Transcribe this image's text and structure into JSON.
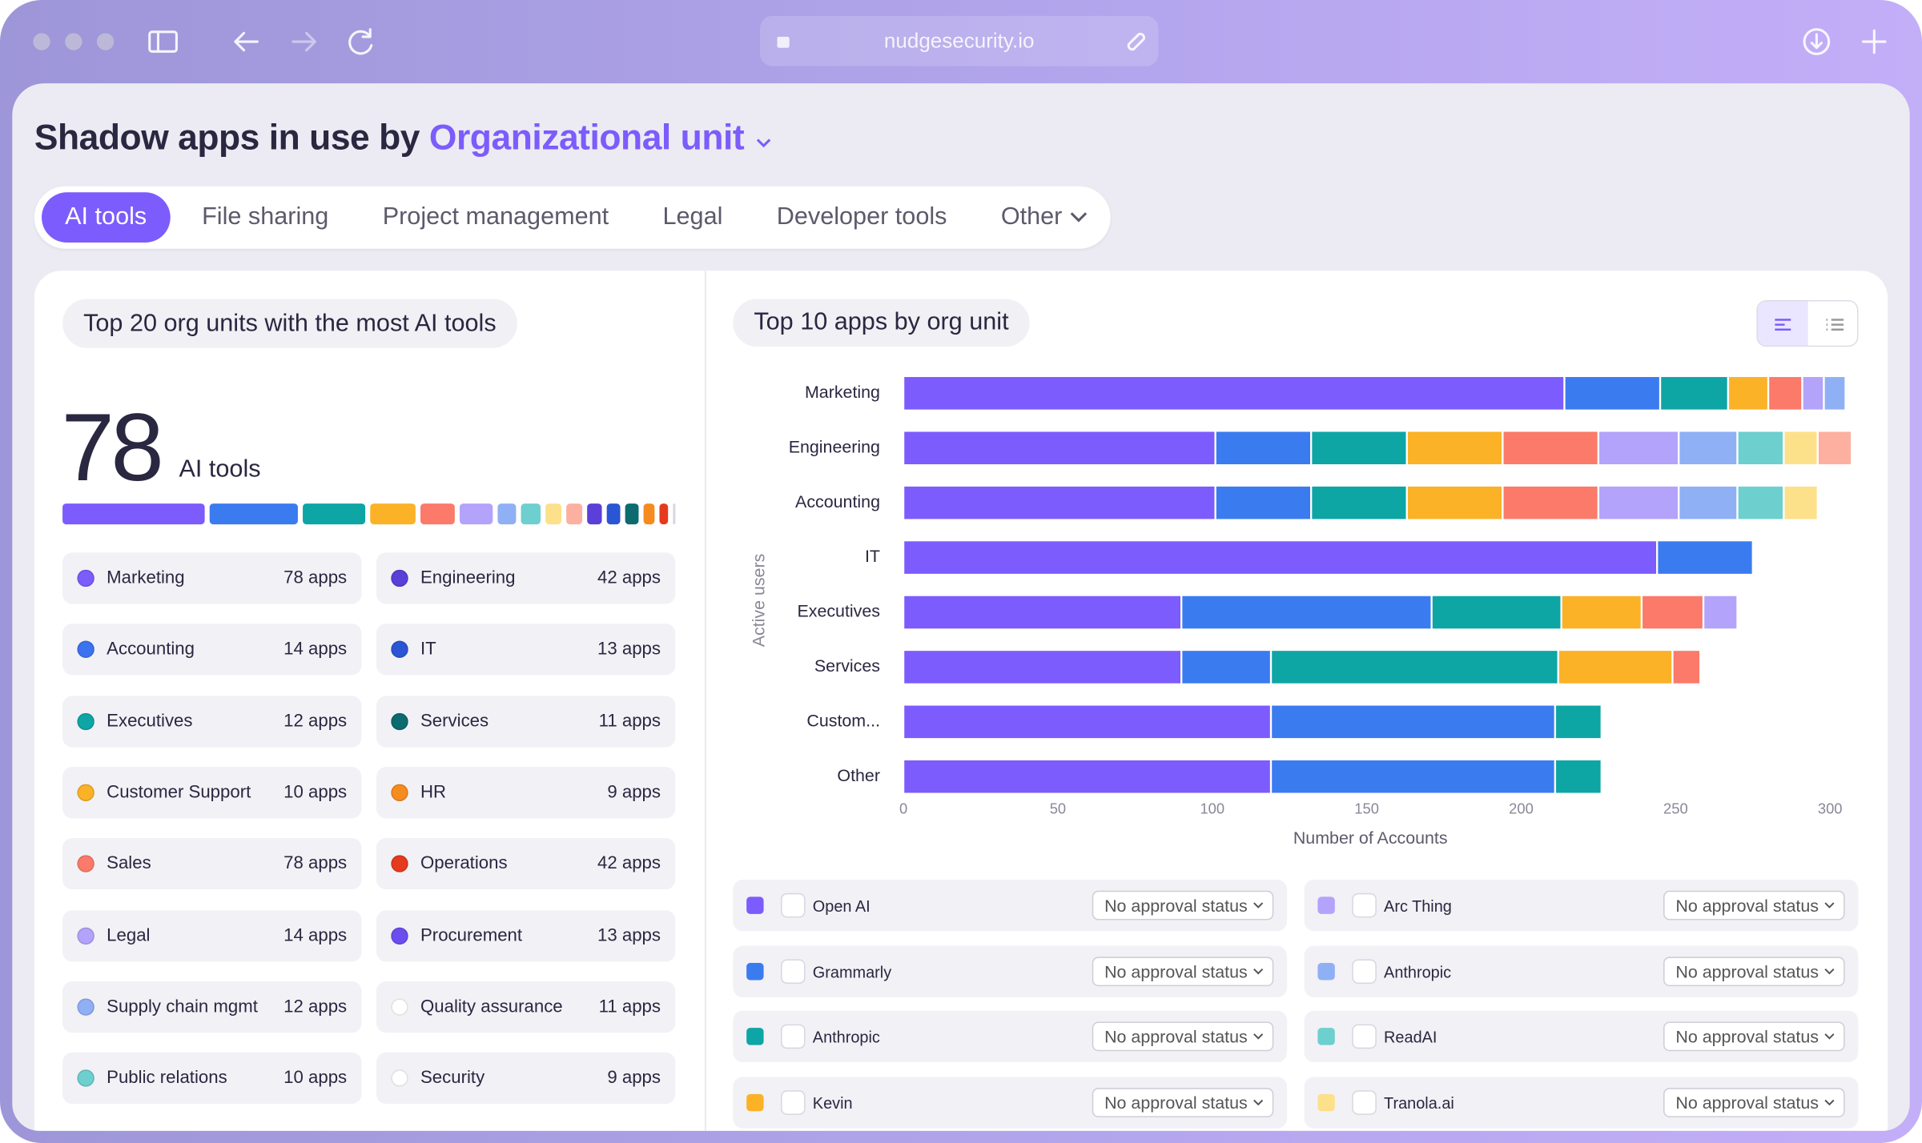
{
  "browser": {
    "url": "nudgesecurity.io"
  },
  "header": {
    "title": "Shadow apps in use by",
    "group_by": "Organizational unit"
  },
  "tabs": [
    "AI tools",
    "File sharing",
    "Project management",
    "Legal",
    "Developer tools",
    "Other"
  ],
  "left_panel": {
    "title": "Top 20 org units with the most AI tools",
    "count": 78,
    "unit": "AI tools",
    "org_units": [
      {
        "name": "Marketing",
        "apps": "78 apps",
        "color": "#7c5cfc"
      },
      {
        "name": "Engineering",
        "apps": "42 apps",
        "color": "#5a3fd8"
      },
      {
        "name": "Accounting",
        "apps": "14 apps",
        "color": "#3b72f0"
      },
      {
        "name": "IT",
        "apps": "13 apps",
        "color": "#2a55d4"
      },
      {
        "name": "Executives",
        "apps": "12 apps",
        "color": "#0ea5a5"
      },
      {
        "name": "Services",
        "apps": "11 apps",
        "color": "#0b6b6e"
      },
      {
        "name": "Customer Support",
        "apps": "10 apps",
        "color": "#fbb227"
      },
      {
        "name": "HR",
        "apps": "9 apps",
        "color": "#f68b1f"
      },
      {
        "name": "Sales",
        "apps": "78 apps",
        "color": "#fb7a6a"
      },
      {
        "name": "Operations",
        "apps": "42 apps",
        "color": "#e63a1e"
      },
      {
        "name": "Legal",
        "apps": "14 apps",
        "color": "#b3a3fb"
      },
      {
        "name": "Procurement",
        "apps": "13 apps",
        "color": "#6b4ef0"
      },
      {
        "name": "Supply chain mgmt",
        "apps": "12 apps",
        "color": "#8fb0f5"
      },
      {
        "name": "Quality assurance",
        "apps": "11 apps",
        "color": "#ffffff"
      },
      {
        "name": "Public relations",
        "apps": "10 apps",
        "color": "#6ecfcf"
      },
      {
        "name": "Security",
        "apps": "9 apps",
        "color": "#ffffff"
      }
    ]
  },
  "right_panel": {
    "title": "Top 10 apps by org unit",
    "apps": [
      {
        "name": "Open AI",
        "status": "No approval status",
        "color": "#7c5cfc"
      },
      {
        "name": "Arc Thing",
        "status": "No approval status",
        "color": "#b3a3fb"
      },
      {
        "name": "Grammarly",
        "status": "No approval status",
        "color": "#3b7bf0"
      },
      {
        "name": "Anthropic",
        "status": "No approval status",
        "color": "#8fb0f5"
      },
      {
        "name": "Anthropic",
        "status": "No approval status",
        "color": "#0ea5a5"
      },
      {
        "name": "ReadAI",
        "status": "No approval status",
        "color": "#6ecfcf"
      },
      {
        "name": "Kevin",
        "status": "No approval status",
        "color": "#fbb227"
      },
      {
        "name": "Tranola.ai",
        "status": "No approval status",
        "color": "#fde08a"
      }
    ]
  },
  "chart_data": {
    "type": "stacked-barh",
    "xlabel": "Number of Accounts",
    "ylabel": "Active users",
    "categories": [
      "Marketing",
      "Engineering",
      "Accounting",
      "IT",
      "Executives",
      "Services",
      "Custom...",
      "Other"
    ],
    "xlim": [
      0,
      300
    ],
    "xticks": [
      0,
      50,
      100,
      150,
      200,
      250,
      300
    ],
    "series": [
      {
        "color": "#7c5cfc",
        "values": [
          214,
          101,
          101,
          244,
          90,
          90,
          119,
          119
        ]
      },
      {
        "color": "#3b7bf0",
        "values": [
          31,
          31,
          31,
          31,
          81,
          29,
          92,
          92
        ]
      },
      {
        "color": "#0ea5a5",
        "values": [
          22,
          31,
          31,
          null,
          42,
          93,
          15,
          15
        ]
      },
      {
        "color": "#fbb227",
        "values": [
          13,
          31,
          31,
          null,
          26,
          37,
          null,
          null
        ]
      },
      {
        "color": "#fb7a6a",
        "values": [
          11,
          31,
          31,
          null,
          20,
          9,
          null,
          null
        ]
      },
      {
        "color": "#b3a3fb",
        "values": [
          7,
          26,
          26,
          null,
          11,
          null,
          null,
          null
        ]
      },
      {
        "color": "#8fb0f5",
        "values": [
          7,
          19,
          19,
          null,
          null,
          null,
          null,
          null
        ]
      },
      {
        "color": "#6ecfcf",
        "values": [
          null,
          15,
          15,
          null,
          null,
          null,
          null,
          null
        ]
      },
      {
        "color": "#fde08a",
        "values": [
          null,
          11,
          11,
          null,
          null,
          null,
          null,
          null
        ]
      },
      {
        "color": "#fdb0a0",
        "values": [
          null,
          11,
          null,
          null,
          null,
          null,
          null,
          null
        ]
      }
    ]
  }
}
